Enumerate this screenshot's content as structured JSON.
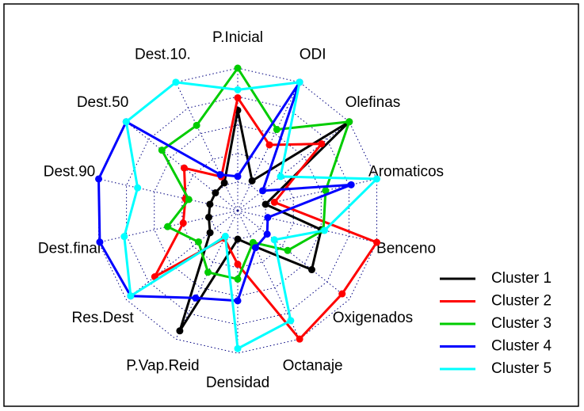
{
  "chart_data": {
    "type": "radar",
    "categories": [
      "P.Inicial",
      "ODI",
      "Olefinas",
      "Aromaticos",
      "Benceno",
      "Oxigenados",
      "Octanaje",
      "Densidad",
      "P.Vap.Reid",
      "Res.Dest",
      "Dest.final",
      "Dest.90",
      "Dest.50",
      "Dest.10."
    ],
    "ylim": [
      -0.25,
      1
    ],
    "yticks": [
      -0.25,
      0,
      0.25,
      0.5,
      0.75,
      1
    ],
    "grid": true,
    "legend": "bottom-right",
    "series": [
      {
        "name": "Cluster 1",
        "color": "#000000",
        "values": [
          0.63,
          0.04,
          1.0,
          0,
          0.5,
          0.58,
          0.1,
          0,
          0.92,
          0.06,
          0.01,
          0,
          0,
          0.02
        ]
      },
      {
        "name": "Cluster 2",
        "color": "#ff0000",
        "values": [
          0.74,
          0.39,
          0.69,
          0.08,
          1.0,
          0.92,
          1.0,
          0.22,
          0.02,
          0.68,
          0.24,
          0.22,
          0.35,
          0.08
        ]
      },
      {
        "name": "Cluster 3",
        "color": "#00cc00",
        "values": [
          1.0,
          0.54,
          1.0,
          0.54,
          0.52,
          0.31,
          0.06,
          0.35,
          0.35,
          0.19,
          0.38,
          0.19,
          0.6,
          0.58
        ]
      },
      {
        "name": "Cluster 4",
        "color": "#0000ff",
        "values": [
          0.05,
          1.0,
          0.03,
          0.77,
          0.02,
          0.08,
          0.11,
          0.54,
          0.6,
          0.95,
          0.99,
          1.0,
          1.0,
          0.1
        ]
      },
      {
        "name": "Cluster 5",
        "color": "#00ffff",
        "values": [
          0.81,
          1.0,
          0.23,
          1.0,
          0.53,
          0.16,
          0.82,
          0.96,
          0,
          0.95,
          0.77,
          0.65,
          1.0,
          1.0
        ]
      }
    ]
  }
}
